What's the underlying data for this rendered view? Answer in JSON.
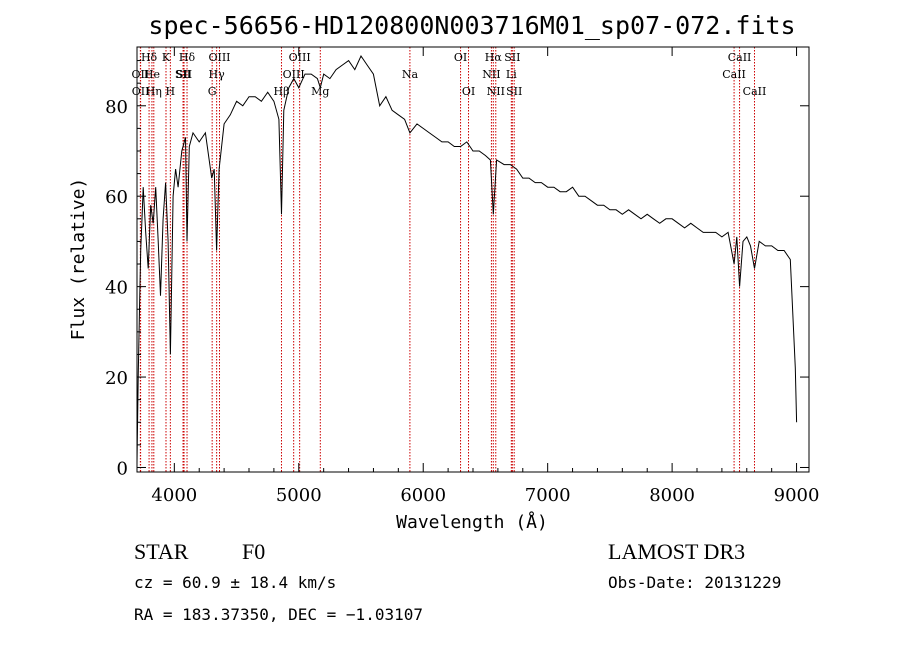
{
  "chart_data": {
    "type": "line",
    "title": "spec-56656-HD120800N003716M01_sp07-072.fits",
    "xlabel": "Wavelength (Å)",
    "ylabel": "Flux (relative)",
    "xlim": [
      3700,
      9100
    ],
    "ylim": [
      -1,
      93
    ],
    "x_ticks": [
      4000,
      5000,
      6000,
      7000,
      8000,
      9000
    ],
    "y_ticks": [
      0,
      20,
      40,
      60,
      80
    ],
    "grid": false,
    "series": [
      {
        "values": [
          [
            3700,
            1
          ],
          [
            3710,
            20
          ],
          [
            3720,
            35
          ],
          [
            3730,
            48
          ],
          [
            3740,
            55
          ],
          [
            3750,
            62
          ],
          [
            3770,
            52
          ],
          [
            3790,
            44
          ],
          [
            3810,
            58
          ],
          [
            3830,
            54
          ],
          [
            3850,
            62
          ],
          [
            3870,
            50
          ],
          [
            3889,
            38
          ],
          [
            3910,
            55
          ],
          [
            3930,
            63
          ],
          [
            3950,
            50
          ],
          [
            3968,
            25
          ],
          [
            3990,
            60
          ],
          [
            4010,
            66
          ],
          [
            4030,
            62
          ],
          [
            4060,
            70
          ],
          [
            4090,
            73
          ],
          [
            4102,
            50
          ],
          [
            4120,
            71
          ],
          [
            4150,
            74
          ],
          [
            4200,
            72
          ],
          [
            4250,
            74
          ],
          [
            4300,
            64
          ],
          [
            4320,
            66
          ],
          [
            4340,
            48
          ],
          [
            4360,
            66
          ],
          [
            4400,
            76
          ],
          [
            4450,
            78
          ],
          [
            4500,
            81
          ],
          [
            4550,
            80
          ],
          [
            4600,
            82
          ],
          [
            4650,
            82
          ],
          [
            4700,
            81
          ],
          [
            4750,
            83
          ],
          [
            4800,
            81
          ],
          [
            4840,
            77
          ],
          [
            4861,
            56
          ],
          [
            4880,
            79
          ],
          [
            4920,
            84
          ],
          [
            4960,
            86
          ],
          [
            5000,
            84
          ],
          [
            5050,
            87
          ],
          [
            5100,
            87
          ],
          [
            5150,
            86
          ],
          [
            5173,
            84
          ],
          [
            5200,
            87
          ],
          [
            5250,
            86
          ],
          [
            5300,
            88
          ],
          [
            5350,
            89
          ],
          [
            5400,
            90
          ],
          [
            5450,
            88
          ],
          [
            5500,
            91
          ],
          [
            5550,
            89
          ],
          [
            5600,
            87
          ],
          [
            5650,
            80
          ],
          [
            5700,
            82
          ],
          [
            5750,
            79
          ],
          [
            5800,
            78
          ],
          [
            5850,
            77
          ],
          [
            5893,
            74
          ],
          [
            5950,
            76
          ],
          [
            6000,
            75
          ],
          [
            6050,
            74
          ],
          [
            6100,
            73
          ],
          [
            6150,
            72
          ],
          [
            6200,
            72
          ],
          [
            6250,
            71
          ],
          [
            6300,
            71
          ],
          [
            6350,
            72
          ],
          [
            6400,
            70
          ],
          [
            6450,
            70
          ],
          [
            6500,
            69
          ],
          [
            6540,
            68
          ],
          [
            6563,
            56
          ],
          [
            6590,
            68
          ],
          [
            6650,
            67
          ],
          [
            6700,
            67
          ],
          [
            6750,
            66
          ],
          [
            6800,
            64
          ],
          [
            6850,
            64
          ],
          [
            6900,
            63
          ],
          [
            6950,
            63
          ],
          [
            7000,
            62
          ],
          [
            7050,
            62
          ],
          [
            7100,
            61
          ],
          [
            7150,
            61
          ],
          [
            7200,
            62
          ],
          [
            7250,
            60
          ],
          [
            7300,
            60
          ],
          [
            7350,
            59
          ],
          [
            7400,
            58
          ],
          [
            7450,
            58
          ],
          [
            7500,
            57
          ],
          [
            7550,
            57
          ],
          [
            7600,
            56
          ],
          [
            7650,
            57
          ],
          [
            7700,
            56
          ],
          [
            7750,
            55
          ],
          [
            7800,
            56
          ],
          [
            7850,
            55
          ],
          [
            7900,
            54
          ],
          [
            7950,
            55
          ],
          [
            8000,
            55
          ],
          [
            8050,
            54
          ],
          [
            8100,
            53
          ],
          [
            8150,
            54
          ],
          [
            8200,
            53
          ],
          [
            8250,
            52
          ],
          [
            8300,
            52
          ],
          [
            8350,
            52
          ],
          [
            8400,
            51
          ],
          [
            8450,
            52
          ],
          [
            8498,
            45
          ],
          [
            8520,
            51
          ],
          [
            8542,
            40
          ],
          [
            8570,
            50
          ],
          [
            8600,
            51
          ],
          [
            8630,
            49
          ],
          [
            8662,
            44
          ],
          [
            8700,
            50
          ],
          [
            8750,
            49
          ],
          [
            8800,
            49
          ],
          [
            8850,
            48
          ],
          [
            8900,
            48
          ],
          [
            8950,
            46
          ],
          [
            8990,
            22
          ],
          [
            9000,
            10
          ]
        ]
      }
    ],
    "line_markers": [
      {
        "label": "Hδ",
        "wavelength": 3797,
        "row": 0
      },
      {
        "label": "OII",
        "wavelength": 3727,
        "row": 1
      },
      {
        "label": "OII",
        "wavelength": 3729,
        "row": 2
      },
      {
        "label": "He",
        "wavelength": 3820,
        "row": 1
      },
      {
        "label": "Hη",
        "wavelength": 3835,
        "row": 2
      },
      {
        "label": "K",
        "wavelength": 3933,
        "row": 0
      },
      {
        "label": "SII",
        "wavelength": 4070,
        "row": 1
      },
      {
        "label": "H",
        "wavelength": 3968,
        "row": 2
      },
      {
        "label": "Hδ",
        "wavelength": 4102,
        "row": 0
      },
      {
        "label": "SII",
        "wavelength": 4078,
        "row": 1
      },
      {
        "label": "OIII",
        "wavelength": 4363,
        "row": 0
      },
      {
        "label": "Hγ",
        "wavelength": 4340,
        "row": 1
      },
      {
        "label": "G",
        "wavelength": 4304,
        "row": 2
      },
      {
        "label": "Mg",
        "wavelength": 5173,
        "row": 2
      },
      {
        "label": "Hβ",
        "wavelength": 4861,
        "row": 2
      },
      {
        "label": "OIII",
        "wavelength": 5007,
        "row": 0
      },
      {
        "label": "OIII",
        "wavelength": 4959,
        "row": 1
      },
      {
        "label": "Na",
        "wavelength": 5893,
        "row": 1
      },
      {
        "label": "OI",
        "wavelength": 6300,
        "row": 0
      },
      {
        "label": "OI",
        "wavelength": 6364,
        "row": 2
      },
      {
        "label": "Hα",
        "wavelength": 6563,
        "row": 0
      },
      {
        "label": "SII",
        "wavelength": 6716,
        "row": 0
      },
      {
        "label": "NII",
        "wavelength": 6548,
        "row": 1
      },
      {
        "label": "Li",
        "wavelength": 6708,
        "row": 1
      },
      {
        "label": "NII",
        "wavelength": 6583,
        "row": 2
      },
      {
        "label": "SII",
        "wavelength": 6731,
        "row": 2
      },
      {
        "label": "CaII",
        "wavelength": 8542,
        "row": 0
      },
      {
        "label": "CaII",
        "wavelength": 8498,
        "row": 1
      },
      {
        "label": "CaII",
        "wavelength": 8662,
        "row": 2
      }
    ],
    "marker_color": "#cc0000",
    "line_color": "#000000"
  },
  "info": {
    "object_class": "STAR",
    "subclass": "F0",
    "survey": "LAMOST DR3",
    "cz": "cz = 60.9 ± 18.4 km/s",
    "obs_date": "Obs-Date: 20131229",
    "coords": "RA = 183.37350, DEC =  −1.03107"
  }
}
